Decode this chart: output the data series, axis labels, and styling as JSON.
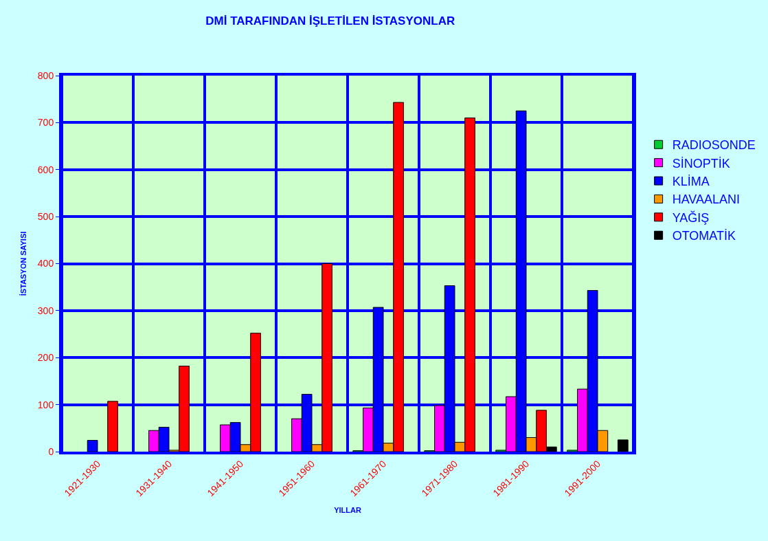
{
  "chart_data": {
    "type": "bar",
    "title": "DMİ TARAFINDAN İŞLETİLEN İSTASYONLAR",
    "xlabel": "YILLAR",
    "ylabel": "İSTASYON SAYISI",
    "categories": [
      "1921-1930",
      "1931-1940",
      "1941-1950",
      "1951-1960",
      "1961-1970",
      "1971-1980",
      "1981-1990",
      "1991-2000"
    ],
    "series": [
      {
        "name": "RADIOSONDE",
        "color": "#00cc33",
        "values": [
          null,
          null,
          null,
          null,
          2,
          2,
          3,
          3
        ]
      },
      {
        "name": "SİNOPTİK",
        "color": "#ff00ff",
        "values": [
          null,
          45,
          57,
          70,
          93,
          98,
          117,
          133
        ]
      },
      {
        "name": "KLİMA",
        "color": "#0000ff",
        "values": [
          24,
          52,
          62,
          122,
          307,
          353,
          725,
          343
        ]
      },
      {
        "name": "HAVAALANI",
        "color": "#ff9900",
        "values": [
          null,
          3,
          15,
          15,
          18,
          20,
          30,
          45
        ]
      },
      {
        "name": "YAĞIŞ",
        "color": "#ff0000",
        "values": [
          107,
          182,
          252,
          400,
          743,
          710,
          88,
          null
        ]
      },
      {
        "name": "OTOMATİK",
        "color": "#000000",
        "values": [
          null,
          null,
          null,
          null,
          null,
          null,
          10,
          25
        ]
      }
    ],
    "ylim": [
      0,
      800
    ],
    "yticks": [
      0,
      100,
      200,
      300,
      400,
      500,
      600,
      700,
      800
    ],
    "grid": true,
    "legend": "right"
  }
}
